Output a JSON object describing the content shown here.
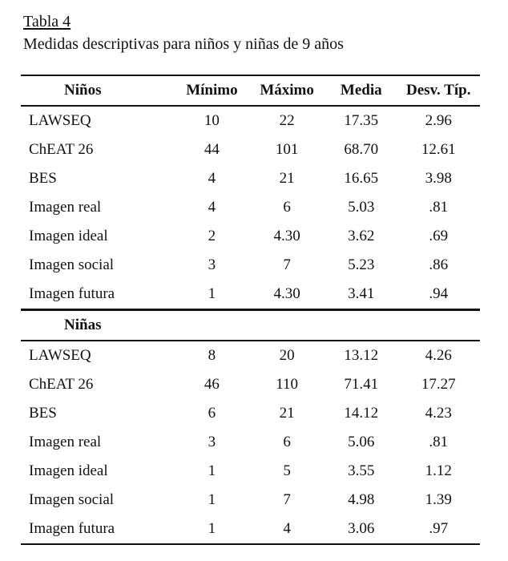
{
  "caption": {
    "label": "Tabla 4",
    "title": "Medidas descriptivas para niños y niñas de 9 años"
  },
  "table": {
    "headers": [
      "Niños",
      "Mínimo",
      "Máximo",
      "Media",
      "Desv. Típ."
    ],
    "groups": [
      {
        "name": "Niños",
        "rows": [
          [
            "LAWSEQ",
            "10",
            "22",
            "17.35",
            "2.96"
          ],
          [
            "ChEAT 26",
            "44",
            "101",
            "68.70",
            "12.61"
          ],
          [
            "BES",
            "4",
            "21",
            "16.65",
            "3.98"
          ],
          [
            "Imagen real",
            "4",
            "6",
            "5.03",
            ".81"
          ],
          [
            "Imagen ideal",
            "2",
            "4.30",
            "3.62",
            ".69"
          ],
          [
            "Imagen social",
            "3",
            "7",
            "5.23",
            ".86"
          ],
          [
            "Imagen futura",
            "1",
            "4.30",
            "3.41",
            ".94"
          ]
        ]
      },
      {
        "name": "Niñas",
        "rows": [
          [
            "LAWSEQ",
            "8",
            "20",
            "13.12",
            "4.26"
          ],
          [
            "ChEAT 26",
            "46",
            "110",
            "71.41",
            "17.27"
          ],
          [
            "BES",
            "6",
            "21",
            "14.12",
            "4.23"
          ],
          [
            "Imagen real",
            "3",
            "6",
            "5.06",
            ".81"
          ],
          [
            "Imagen ideal",
            "1",
            "5",
            "3.55",
            "1.12"
          ],
          [
            "Imagen social",
            "1",
            "7",
            "4.98",
            "1.39"
          ],
          [
            "Imagen futura",
            "1",
            "4",
            "3.06",
            ".97"
          ]
        ]
      }
    ]
  }
}
